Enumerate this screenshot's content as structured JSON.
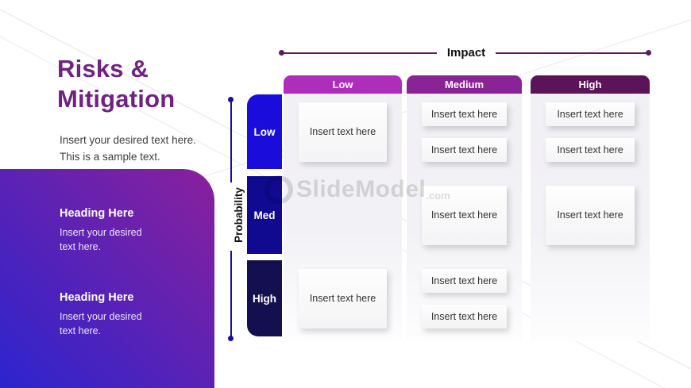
{
  "slide": {
    "title_line1": "Risks &",
    "title_line2": "Mitigation",
    "title_color": "#702283",
    "subtitle_line1": "Insert your desired text here.",
    "subtitle_line2": "This is a sample text."
  },
  "card": {
    "gradient_from": "#8A209C",
    "gradient_to": "#2C24CE",
    "blocks": [
      {
        "heading": "Heading Here",
        "body_line1": "Insert your desired",
        "body_line2": "text here."
      },
      {
        "heading": "Heading Here",
        "body_line1": "Insert your desired",
        "body_line2": "text here."
      }
    ]
  },
  "matrix": {
    "impact_label": "Impact",
    "impact_line_color": "#5E1A5E",
    "probability_label": "Probability",
    "probability_line_color": "#1A0DA8",
    "columns": [
      {
        "label": "Low",
        "color": "#AF2DBB"
      },
      {
        "label": "Medium",
        "color": "#8A2396"
      },
      {
        "label": "High",
        "color": "#5C1458"
      }
    ],
    "rows": [
      {
        "label": "Low",
        "color": "#1A0DDB"
      },
      {
        "label": "Med",
        "color": "#0F0A90"
      },
      {
        "label": "High",
        "color": "#14104F"
      }
    ],
    "placeholder_text": "Insert text here",
    "cells": [
      {
        "row": 0,
        "col": 0,
        "boxes": [
          "large"
        ]
      },
      {
        "row": 0,
        "col": 1,
        "boxes": [
          "small",
          "small"
        ]
      },
      {
        "row": 0,
        "col": 2,
        "boxes": [
          "small",
          "small"
        ]
      },
      {
        "row": 1,
        "col": 0,
        "boxes": []
      },
      {
        "row": 1,
        "col": 1,
        "boxes": [
          "large"
        ]
      },
      {
        "row": 1,
        "col": 2,
        "boxes": [
          "large"
        ]
      },
      {
        "row": 2,
        "col": 0,
        "boxes": [
          "large"
        ]
      },
      {
        "row": 2,
        "col": 1,
        "boxes": [
          "small",
          "small"
        ]
      },
      {
        "row": 2,
        "col": 2,
        "boxes": []
      }
    ]
  },
  "watermark": {
    "name": "SlideModel",
    "tld": ".com"
  }
}
